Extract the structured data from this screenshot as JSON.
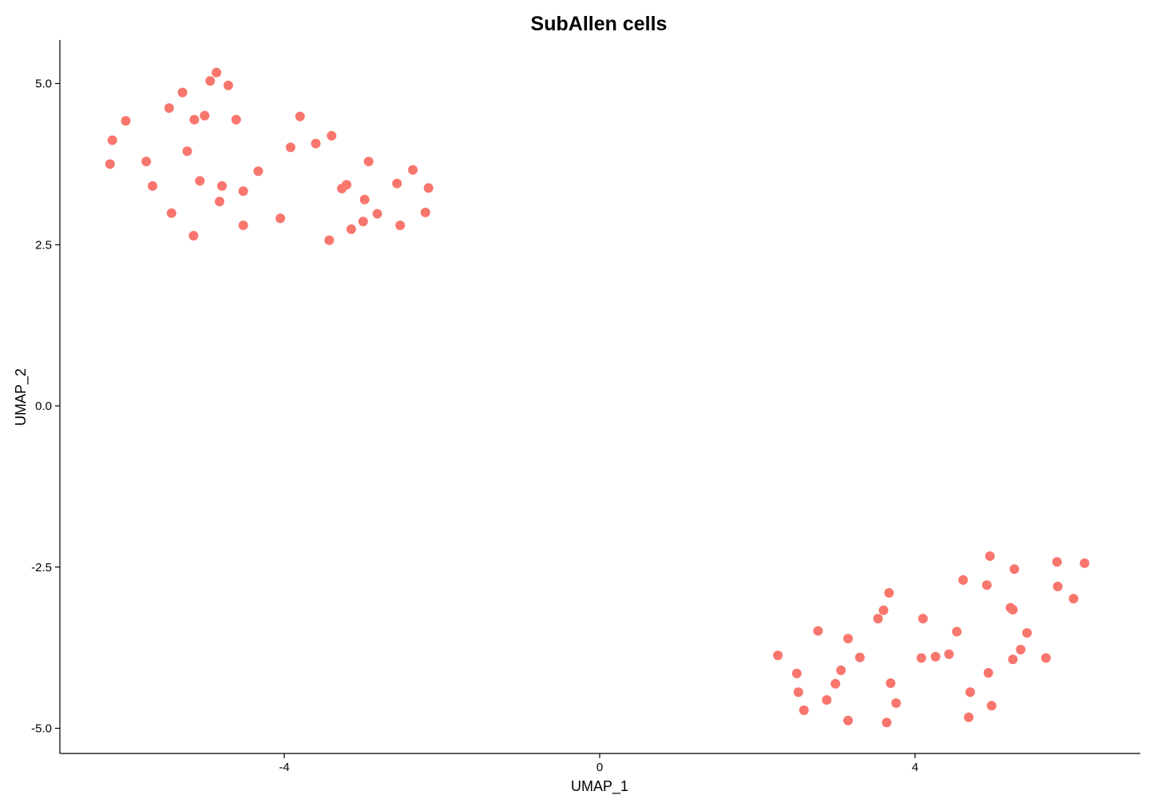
{
  "chart_data": {
    "type": "scatter",
    "title": "SubAllen cells",
    "xlabel": "UMAP_1",
    "ylabel": "UMAP_2",
    "xlim": [
      -6.85,
      6.8
    ],
    "ylim": [
      -5.4,
      5.7
    ],
    "x_ticks": [
      -4,
      0,
      4
    ],
    "x_tick_labels": [
      "-4",
      "0",
      "4"
    ],
    "y_ticks": [
      -5.0,
      -2.5,
      0.0,
      2.5,
      5.0
    ],
    "y_tick_labels": [
      "-5.0",
      "-2.5",
      "0.0",
      "2.5",
      "5.0"
    ],
    "grid": false,
    "legend": "none",
    "point_color": "#F8766D",
    "points": [
      [
        -6.18,
        4.12
      ],
      [
        -6.21,
        3.75
      ],
      [
        -6.01,
        4.42
      ],
      [
        -5.75,
        3.79
      ],
      [
        -5.67,
        3.41
      ],
      [
        -5.46,
        4.62
      ],
      [
        -5.43,
        2.99
      ],
      [
        -5.29,
        4.86
      ],
      [
        -5.23,
        3.95
      ],
      [
        -5.14,
        4.44
      ],
      [
        -5.15,
        2.64
      ],
      [
        -5.07,
        3.49
      ],
      [
        -5.01,
        4.5
      ],
      [
        -4.94,
        5.04
      ],
      [
        -4.86,
        5.17
      ],
      [
        -4.82,
        3.17
      ],
      [
        -4.79,
        3.41
      ],
      [
        -4.71,
        4.97
      ],
      [
        -4.61,
        4.44
      ],
      [
        -4.52,
        3.33
      ],
      [
        -4.52,
        2.8
      ],
      [
        -4.33,
        3.64
      ],
      [
        -4.05,
        2.91
      ],
      [
        -3.92,
        4.01
      ],
      [
        -3.8,
        4.49
      ],
      [
        -3.6,
        4.07
      ],
      [
        -3.43,
        2.57
      ],
      [
        -3.4,
        4.19
      ],
      [
        -3.27,
        3.37
      ],
      [
        -3.21,
        3.43
      ],
      [
        -3.15,
        2.74
      ],
      [
        -3.0,
        2.86
      ],
      [
        -2.98,
        3.2
      ],
      [
        -2.93,
        3.79
      ],
      [
        -2.82,
        2.98
      ],
      [
        -2.57,
        3.45
      ],
      [
        -2.53,
        2.8
      ],
      [
        -2.37,
        3.66
      ],
      [
        -2.21,
        3.0
      ],
      [
        -2.17,
        3.38
      ],
      [
        2.26,
        -3.87
      ],
      [
        2.5,
        -4.15
      ],
      [
        2.52,
        -4.44
      ],
      [
        2.59,
        -4.72
      ],
      [
        2.77,
        -3.49
      ],
      [
        2.88,
        -4.56
      ],
      [
        2.99,
        -4.31
      ],
      [
        3.06,
        -4.1
      ],
      [
        3.15,
        -3.61
      ],
      [
        3.15,
        -4.88
      ],
      [
        3.3,
        -3.9
      ],
      [
        3.53,
        -3.3
      ],
      [
        3.6,
        -3.17
      ],
      [
        3.67,
        -2.9
      ],
      [
        3.64,
        -4.91
      ],
      [
        3.69,
        -4.3
      ],
      [
        3.76,
        -4.61
      ],
      [
        4.1,
        -3.3
      ],
      [
        4.08,
        -3.91
      ],
      [
        4.26,
        -3.89
      ],
      [
        4.43,
        -3.85
      ],
      [
        4.53,
        -3.5
      ],
      [
        4.61,
        -2.7
      ],
      [
        4.7,
        -4.44
      ],
      [
        4.68,
        -4.83
      ],
      [
        4.91,
        -2.78
      ],
      [
        4.93,
        -4.14
      ],
      [
        4.95,
        -2.33
      ],
      [
        4.97,
        -4.65
      ],
      [
        5.21,
        -3.13
      ],
      [
        5.24,
        -3.16
      ],
      [
        5.24,
        -3.93
      ],
      [
        5.26,
        -2.53
      ],
      [
        5.34,
        -3.78
      ],
      [
        5.42,
        -3.52
      ],
      [
        5.66,
        -3.91
      ],
      [
        5.8,
        -2.42
      ],
      [
        5.81,
        -2.8
      ],
      [
        6.01,
        -2.99
      ],
      [
        6.15,
        -2.44
      ]
    ]
  }
}
